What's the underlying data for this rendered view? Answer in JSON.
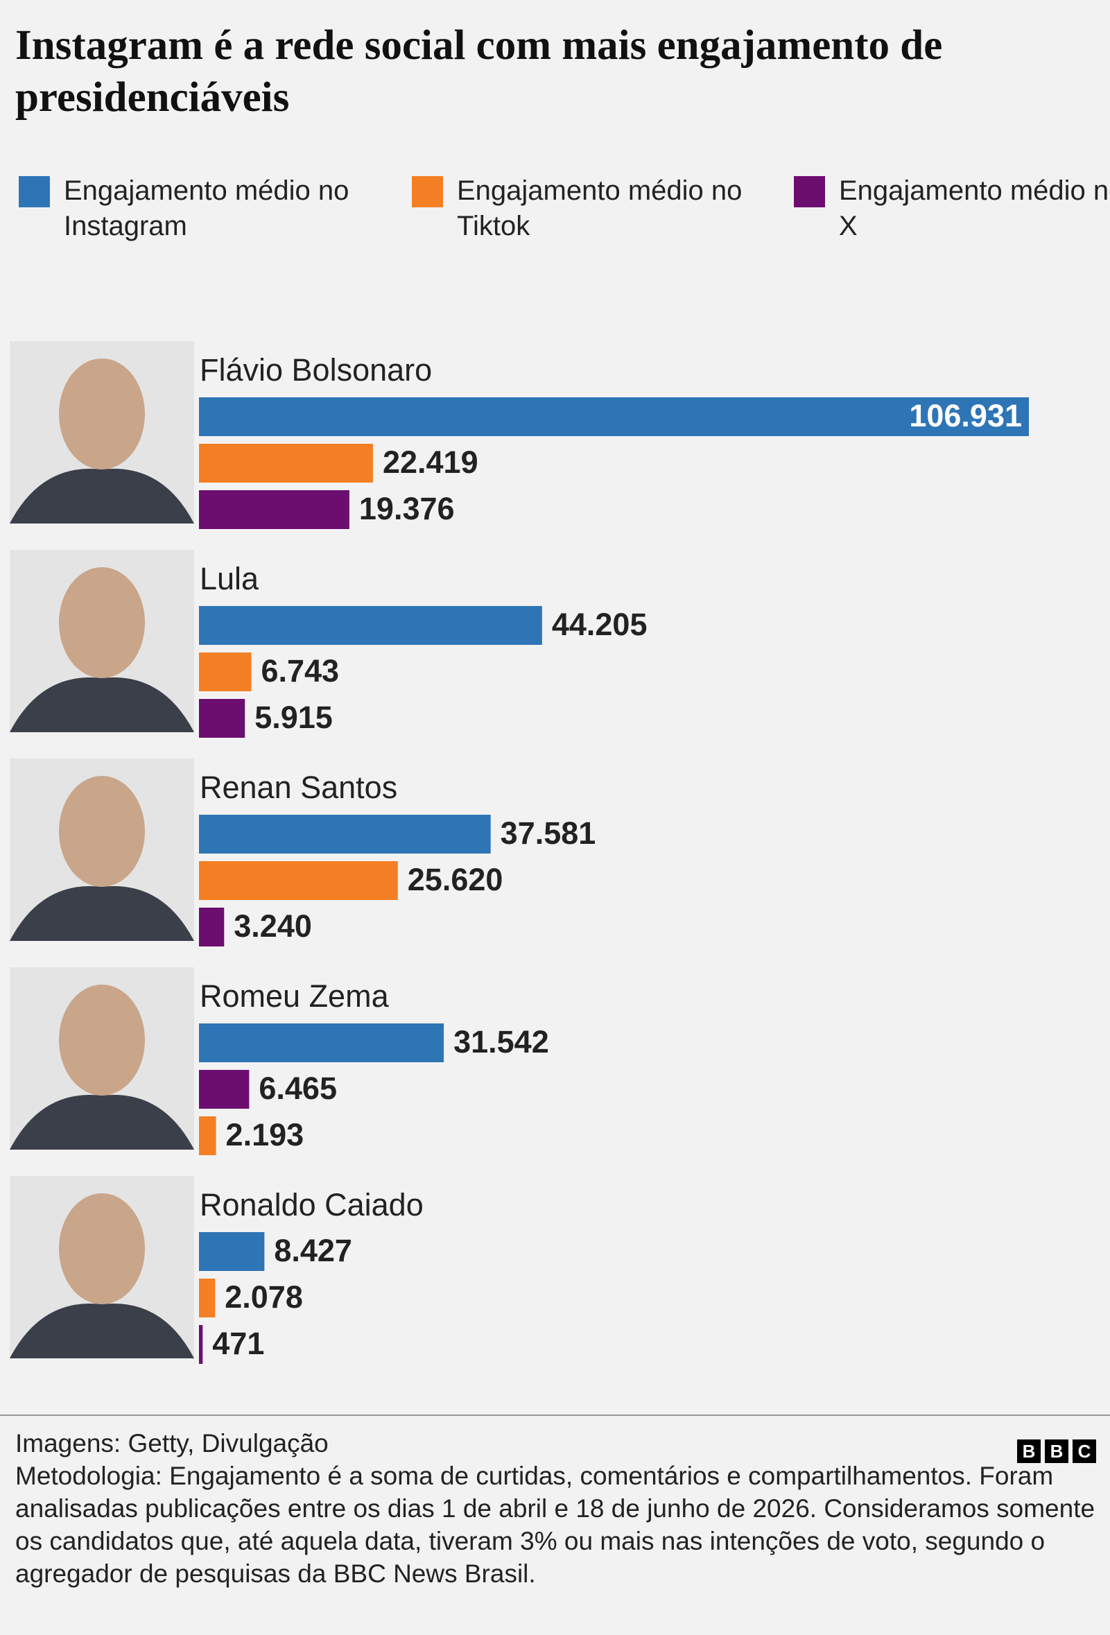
{
  "chart_data": {
    "type": "bar",
    "title": "Instagram é a rede social com mais engajamento de presidenciáveis",
    "categories": [
      "Flávio Bolsonaro",
      "Lula",
      "Renan Santos",
      "Romeu Zema",
      "Ronaldo Caiado"
    ],
    "series": [
      {
        "name": "Engajamento médio no Instagram",
        "color": "#2e75b6",
        "values": [
          106931,
          44205,
          37581,
          31542,
          8427
        ],
        "value_labels": [
          "106.931",
          "44.205",
          "37.581",
          "31.542",
          "8.427"
        ]
      },
      {
        "name": "Engajamento médio no Tiktok",
        "color": "#f47f24",
        "values": [
          22419,
          6743,
          25620,
          2193,
          2078
        ],
        "value_labels": [
          "22.419",
          "6.743",
          "25.620",
          "2.193",
          "2.078"
        ]
      },
      {
        "name": "Engajamento médio no X",
        "color": "#6c0d70",
        "values": [
          19376,
          5915,
          3240,
          6465,
          471
        ],
        "value_labels": [
          "19.376",
          "5.915",
          "3.240",
          "6.465",
          "471"
        ]
      }
    ]
  },
  "footer": {
    "credits": "Imagens: Getty, Divulgação",
    "note": "Metodologia: Engajamento é a soma de curtidas, comentários e compartilhamentos. Foram analisadas publicações entre os dias 1 de abril e 18 de junho de 2026. Consideramos somente os candidatos que, até aquela data, tiveram 3% ou mais nas intenções de voto, segundo o agregador de pesquisas da BBC News Brasil.",
    "logo": "BBC"
  }
}
